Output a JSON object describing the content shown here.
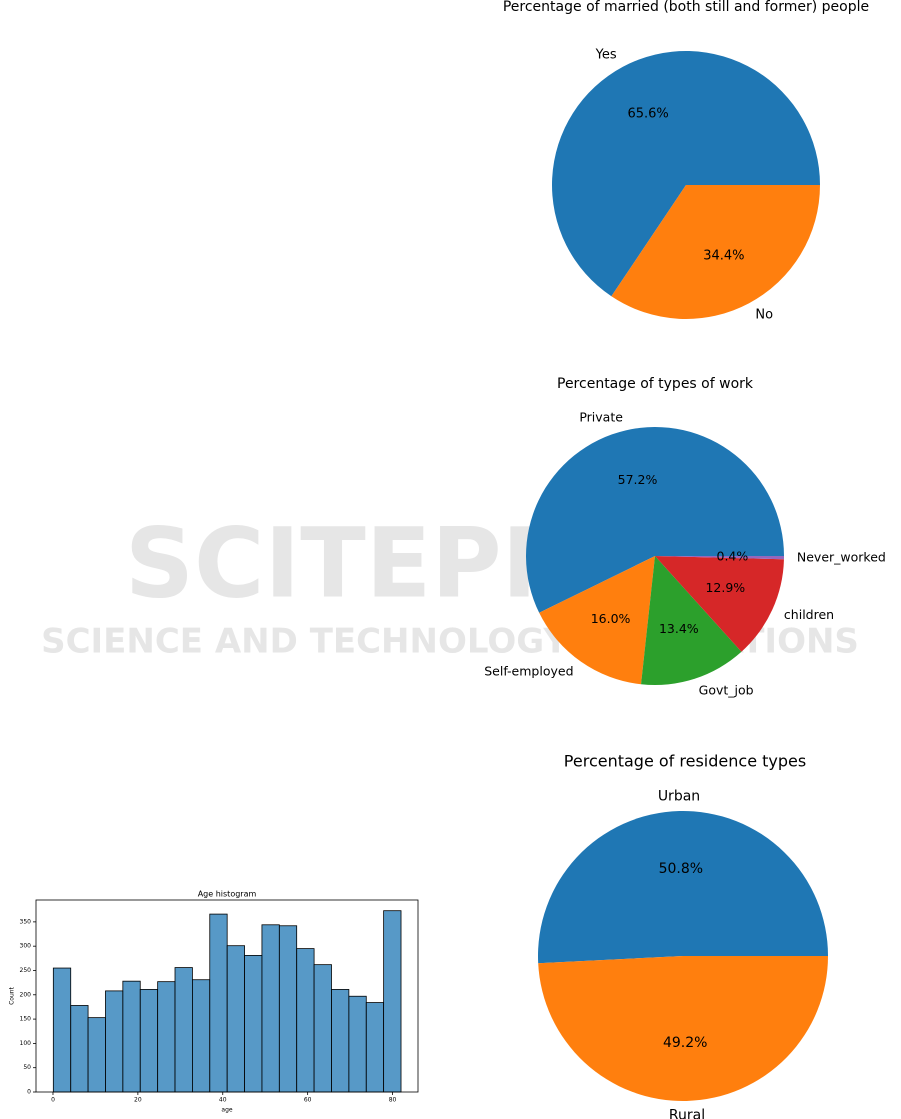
{
  "watermark": [
    "SCITEPRESS",
    "SCIENCE AND TECHNOLOGY PUBLICATIONS"
  ],
  "chart_data": [
    {
      "type": "pie",
      "title": "Percentage of married (both still and former) people",
      "categories": [
        "Yes",
        "No"
      ],
      "values": [
        65.6,
        34.4
      ],
      "value_labels": [
        "65.6%",
        "34.4%"
      ],
      "colors": [
        "#1f77b4",
        "#ff7f0e"
      ]
    },
    {
      "type": "pie",
      "title": "Percentage of types of work",
      "categories": [
        "Private",
        "Self-employed",
        "Govt_job",
        "children",
        "Never_worked"
      ],
      "values": [
        57.2,
        16.0,
        13.4,
        12.9,
        0.4
      ],
      "value_labels": [
        "57.2%",
        "16.0%",
        "13.4%",
        "12.9%",
        "0.4%"
      ],
      "colors": [
        "#1f77b4",
        "#ff7f0e",
        "#2ca02c",
        "#d62728",
        "#9467bd"
      ]
    },
    {
      "type": "pie",
      "title": "Percentage of residence types",
      "categories": [
        "Urban",
        "Rural"
      ],
      "values": [
        50.8,
        49.2
      ],
      "value_labels": [
        "50.8%",
        "49.2%"
      ],
      "colors": [
        "#1f77b4",
        "#ff7f0e"
      ]
    },
    {
      "type": "histogram",
      "title": "Age histogram",
      "x_label": "age",
      "y_label": "Count",
      "bins": [
        0.08,
        4.18,
        8.27,
        12.37,
        16.46,
        20.56,
        24.66,
        28.75,
        32.85,
        36.94,
        41.04,
        45.14,
        49.23,
        53.33,
        57.42,
        61.52,
        65.62,
        69.71,
        73.81,
        77.9,
        82
      ],
      "values": [
        255,
        178,
        153,
        208,
        228,
        211,
        227,
        256,
        231,
        366,
        301,
        281,
        344,
        342,
        295,
        262,
        211,
        197,
        184,
        373
      ],
      "color": "#1f77b4",
      "xlim": [
        -4,
        86
      ],
      "ylim": [
        0,
        395
      ],
      "xticks": [
        0,
        20,
        40,
        60,
        80
      ],
      "yticks": [
        0,
        50,
        100,
        150,
        200,
        250,
        300,
        350
      ]
    }
  ]
}
